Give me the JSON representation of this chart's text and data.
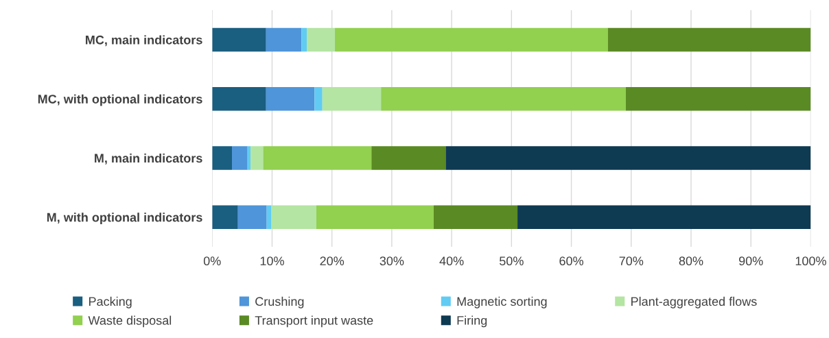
{
  "chart_data": {
    "type": "bar",
    "orientation": "horizontal",
    "stacked": true,
    "categories": [
      "MC, main indicators",
      "MC, with optional indicators",
      "M, main indicators",
      "M, with optional indicators"
    ],
    "series": [
      {
        "name": "Packing",
        "color": "#1a5e80",
        "values": [
          9.0,
          9.0,
          3.3,
          4.3
        ]
      },
      {
        "name": "Crushing",
        "color": "#4e95d9",
        "values": [
          5.9,
          8.1,
          2.6,
          4.8
        ]
      },
      {
        "name": "Magnetic sorting",
        "color": "#61cbf3",
        "values": [
          0.9,
          1.3,
          0.5,
          0.8
        ]
      },
      {
        "name": "Plant-aggregated flows",
        "color": "#b4e5a2",
        "values": [
          4.7,
          9.8,
          2.1,
          7.5
        ]
      },
      {
        "name": "Waste disposal",
        "color": "#92d050",
        "values": [
          45.6,
          40.9,
          18.1,
          19.6
        ]
      },
      {
        "name": "Transport input waste",
        "color": "#5a8a23",
        "values": [
          33.9,
          30.9,
          12.4,
          14.0
        ]
      },
      {
        "name": "Firing",
        "color": "#0e3a52",
        "values": [
          0,
          0,
          61.0,
          49.0
        ]
      }
    ],
    "xlim": [
      0,
      100
    ],
    "xticks": [
      {
        "value": 0,
        "label": "0%"
      },
      {
        "value": 10,
        "label": "10%"
      },
      {
        "value": 20,
        "label": "20%"
      },
      {
        "value": 30,
        "label": "30%"
      },
      {
        "value": 40,
        "label": "40%"
      },
      {
        "value": 50,
        "label": "50%"
      },
      {
        "value": 60,
        "label": "60%"
      },
      {
        "value": 70,
        "label": "70%"
      },
      {
        "value": 80,
        "label": "80%"
      },
      {
        "value": 90,
        "label": "90%"
      },
      {
        "value": 100,
        "label": "100%"
      }
    ],
    "grid": "x",
    "legend": "bottom"
  }
}
